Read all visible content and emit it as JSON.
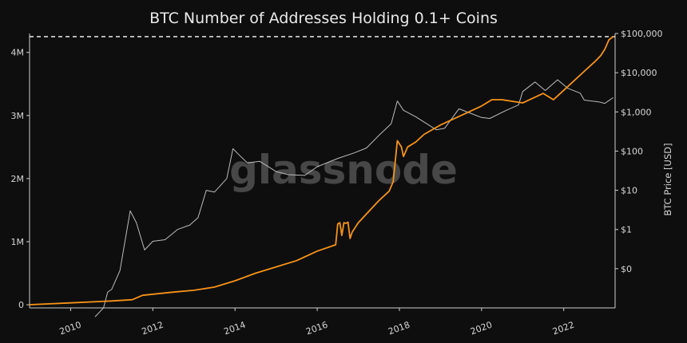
{
  "chart_data": {
    "type": "line",
    "title": "BTC Number of Addresses Holding 0.1+ Coins",
    "xlabel": "",
    "ylabel": "",
    "y2label": "BTC Price [USD]",
    "watermark": "glassnode",
    "x_ticks": [
      "2010",
      "2012",
      "2014",
      "2016",
      "2018",
      "2020",
      "2022"
    ],
    "x_range": [
      2009.0,
      2023.25
    ],
    "y_left_ticks": [
      {
        "value": 0,
        "label": "0"
      },
      {
        "value": 1000000,
        "label": "1M"
      },
      {
        "value": 2000000,
        "label": "2M"
      },
      {
        "value": 3000000,
        "label": "3M"
      },
      {
        "value": 4000000,
        "label": "4M"
      }
    ],
    "y_left_range": [
      -50000,
      4300000
    ],
    "y_right_ticks": [
      {
        "value": 1,
        "label": "$0"
      },
      {
        "value": 10,
        "label": "$1"
      },
      {
        "value": 100,
        "label": "$10"
      },
      {
        "value": 1000,
        "label": "$100"
      },
      {
        "value": 10000,
        "label": "$1,000"
      },
      {
        "value": 100000,
        "label": "$10,000"
      },
      {
        "value": 1000000,
        "label": "$100,000"
      }
    ],
    "y_right_scale": "log",
    "y_right_range": [
      0.1,
      1000000
    ],
    "grid": false,
    "reference_line": {
      "value": 4250000,
      "style": "dashed",
      "color": "#ffffff"
    },
    "series": [
      {
        "axis": "left",
        "color": "#f7931a",
        "x": [
          2009.0,
          2010.0,
          2011.0,
          2011.5,
          2011.75,
          2012.5,
          2013.0,
          2013.5,
          2014.0,
          2014.5,
          2015.0,
          2015.5,
          2016.0,
          2016.45,
          2016.5,
          2016.55,
          2016.6,
          2016.65,
          2016.7,
          2016.75,
          2016.8,
          2016.85,
          2017.0,
          2017.5,
          2017.75,
          2017.85,
          2017.95,
          2018.05,
          2018.1,
          2018.2,
          2018.4,
          2018.6,
          2019.0,
          2019.5,
          2020.0,
          2020.25,
          2020.5,
          2021.0,
          2021.5,
          2021.75,
          2022.0,
          2022.5,
          2022.75,
          2022.9,
          2023.0,
          2023.1,
          2023.2
        ],
        "values": [
          0,
          30000,
          60000,
          80000,
          150000,
          200000,
          230000,
          280000,
          380000,
          500000,
          600000,
          700000,
          850000,
          950000,
          1280000,
          1300000,
          1100000,
          1300000,
          1290000,
          1310000,
          1050000,
          1150000,
          1300000,
          1650000,
          1800000,
          1950000,
          2600000,
          2500000,
          2350000,
          2500000,
          2580000,
          2700000,
          2850000,
          3000000,
          3150000,
          3250000,
          3250000,
          3200000,
          3350000,
          3250000,
          3400000,
          3700000,
          3850000,
          3950000,
          4050000,
          4200000,
          4250000
        ]
      },
      {
        "axis": "right",
        "color": "#bdbdbd",
        "x": [
          2010.6,
          2010.8,
          2010.9,
          2011.0,
          2011.2,
          2011.45,
          2011.6,
          2011.8,
          2012.0,
          2012.3,
          2012.6,
          2012.9,
          2013.1,
          2013.3,
          2013.5,
          2013.8,
          2013.95,
          2014.1,
          2014.3,
          2014.6,
          2015.0,
          2015.3,
          2015.7,
          2016.0,
          2016.5,
          2016.9,
          2017.2,
          2017.5,
          2017.8,
          2017.95,
          2018.1,
          2018.4,
          2018.9,
          2019.1,
          2019.45,
          2019.7,
          2020.0,
          2020.2,
          2020.6,
          2020.9,
          2021.0,
          2021.3,
          2021.55,
          2021.85,
          2022.1,
          2022.4,
          2022.5,
          2022.85,
          2023.0,
          2023.2
        ],
        "values": [
          0.06,
          0.1,
          0.25,
          0.3,
          0.9,
          30,
          15,
          3,
          5,
          5.5,
          10,
          13,
          20,
          100,
          90,
          200,
          1150,
          800,
          500,
          550,
          300,
          250,
          240,
          400,
          650,
          900,
          1200,
          2500,
          5000,
          19000,
          11000,
          7500,
          3500,
          3800,
          12000,
          9500,
          7200,
          6800,
          11000,
          15000,
          33000,
          58000,
          35000,
          66000,
          40000,
          30000,
          20000,
          18000,
          16500,
          23000
        ]
      }
    ]
  }
}
